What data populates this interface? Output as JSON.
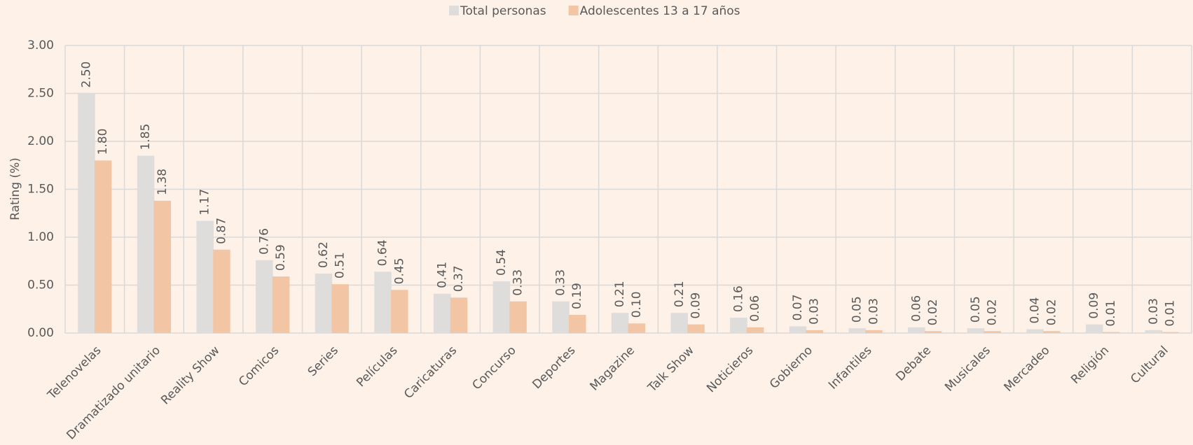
{
  "chart_data": {
    "type": "bar",
    "y_label": "Rating (%)",
    "categories": [
      "Telenovelas",
      "Dramatizado unitario",
      "Reality Show",
      "Comicos",
      "Series",
      "Películas",
      "Caricaturas",
      "Concurso",
      "Deportes",
      "Magazine",
      "Talk Show",
      "Noticieros",
      "Gobierno",
      "Infantiles",
      "Debate",
      "Musicales",
      "Mercadeo",
      "Religión",
      "Cultural"
    ],
    "series": [
      {
        "name": "Total personas",
        "color": "#dedddb",
        "values": [
          2.5,
          1.85,
          1.17,
          0.76,
          0.62,
          0.64,
          0.41,
          0.54,
          0.33,
          0.21,
          0.21,
          0.16,
          0.07,
          0.05,
          0.06,
          0.05,
          0.04,
          0.09,
          0.03
        ],
        "value_labels": [
          "2.50",
          "1.85",
          "1.17",
          "0.76",
          "0.62",
          "0.64",
          "0.41",
          "0.54",
          "0.33",
          "0.21",
          "0.21",
          "0.16",
          "0.07",
          "0.05",
          "0.06",
          "0.05",
          "0.04",
          "0.09",
          "0.03"
        ]
      },
      {
        "name": "Adolescentes 13 a 17 años",
        "color": "#f2c6a5",
        "values": [
          1.8,
          1.38,
          0.87,
          0.59,
          0.51,
          0.45,
          0.37,
          0.33,
          0.19,
          0.1,
          0.09,
          0.06,
          0.03,
          0.03,
          0.02,
          0.02,
          0.02,
          0.01,
          0.01
        ],
        "value_labels": [
          "1.80",
          "1.38",
          "0.87",
          "0.59",
          "0.51",
          "0.45",
          "0.37",
          "0.33",
          "0.19",
          "0.10",
          "0.09",
          "0.06",
          "0.03",
          "0.03",
          "0.02",
          "0.02",
          "0.02",
          "0.01",
          "0.01"
        ]
      }
    ],
    "ylim": [
      0,
      3
    ],
    "yticks": [
      {
        "value": 0,
        "label": "0.00"
      },
      {
        "value": 0.5,
        "label": "0.50"
      },
      {
        "value": 1,
        "label": "1.00"
      },
      {
        "value": 1.5,
        "label": "1.50"
      },
      {
        "value": 2,
        "label": "2.00"
      },
      {
        "value": 2.5,
        "label": "2.50"
      },
      {
        "value": 3,
        "label": "3.00"
      }
    ],
    "grid": true,
    "legend": "top"
  }
}
